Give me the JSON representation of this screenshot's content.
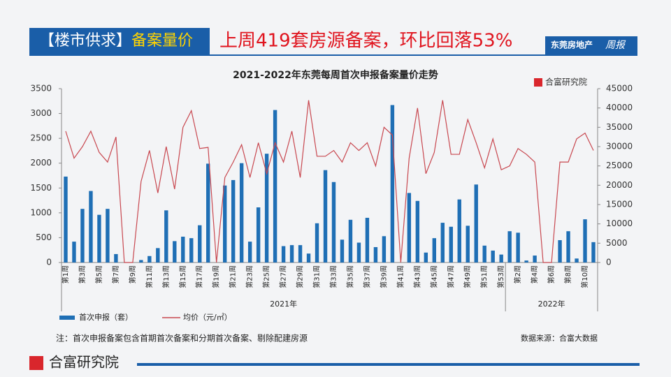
{
  "header": {
    "tag": "【楼市供求】",
    "tag_highlight": "备案量价",
    "headline": "上周419套房源备案，环比回落53%",
    "brand": "东莞房地产",
    "brand_suffix": "周报"
  },
  "chart_data": {
    "type": "bar-line",
    "title": "2021-2022年东莞每周首次申报备案量价走势",
    "logo": "合富研究院",
    "categories": [
      "第1周",
      null,
      "第3周",
      null,
      "第5周",
      null,
      "第7周",
      null,
      "第9周",
      null,
      "第11周",
      null,
      "第13周",
      null,
      "第15周",
      null,
      "第17周",
      null,
      "第19周",
      null,
      "第21周",
      null,
      "第23周",
      null,
      "第25周",
      null,
      "第27周",
      null,
      "第29周",
      null,
      "第31周",
      null,
      "第33周",
      null,
      "第35周",
      null,
      "第37周",
      null,
      "第39周",
      null,
      "第41周",
      null,
      "第43周",
      null,
      "第45周",
      null,
      "第47周",
      null,
      "第49周",
      null,
      "第51周",
      null,
      "第53周",
      null,
      "第2周",
      null,
      "第4周",
      null,
      "第6周",
      null,
      "第8周",
      null,
      "第10周",
      null
    ],
    "year_labels": [
      "2021年",
      "2022年"
    ],
    "series": [
      {
        "name": "首次申报（套）",
        "color": "#1f6fb5",
        "axis": "y",
        "values": [
          1730,
          420,
          1080,
          1440,
          960,
          1080,
          170,
          0,
          0,
          50,
          130,
          290,
          1050,
          430,
          520,
          490,
          750,
          1990,
          0,
          1550,
          1660,
          2000,
          420,
          1110,
          2190,
          3070,
          330,
          350,
          350,
          180,
          790,
          1860,
          1620,
          460,
          860,
          400,
          900,
          310,
          530,
          3170,
          0,
          1400,
          1240,
          200,
          490,
          800,
          720,
          1270,
          740,
          1570,
          340,
          240,
          160,
          630,
          600,
          40,
          140,
          0,
          0,
          450,
          630,
          80,
          870,
          410
        ]
      },
      {
        "name": "均价（元/㎡）",
        "color": "#c8474f",
        "axis": "y2",
        "values": [
          34000,
          27000,
          30000,
          34000,
          28500,
          26000,
          32500,
          0,
          0,
          21000,
          29000,
          18000,
          30000,
          19000,
          35000,
          39300,
          29500,
          29800,
          0,
          22000,
          26000,
          30500,
          22000,
          31000,
          23000,
          31000,
          26000,
          34000,
          22000,
          42000,
          27500,
          27500,
          29000,
          26000,
          31000,
          29000,
          31000,
          25000,
          35000,
          33000,
          0,
          27000,
          40000,
          23000,
          28500,
          42000,
          28000,
          28000,
          37000,
          31000,
          24500,
          32000,
          24000,
          25000,
          29500,
          28000,
          26000,
          0,
          0,
          26000,
          26000,
          32000,
          33500,
          29000
        ]
      }
    ],
    "ylim": [
      0,
      3500
    ],
    "yticks": [
      0,
      500,
      1000,
      1500,
      2000,
      2500,
      3000,
      3500
    ],
    "y2lim": [
      0,
      45000
    ],
    "y2ticks": [
      0,
      5000,
      10000,
      15000,
      20000,
      25000,
      30000,
      35000,
      40000,
      45000
    ]
  },
  "footer": {
    "note": "注：首次申报备案包含首期首次备案和分期首次备案、剔除配建房源",
    "source": "数据来源：合富大数据",
    "company": "合富研究院"
  }
}
